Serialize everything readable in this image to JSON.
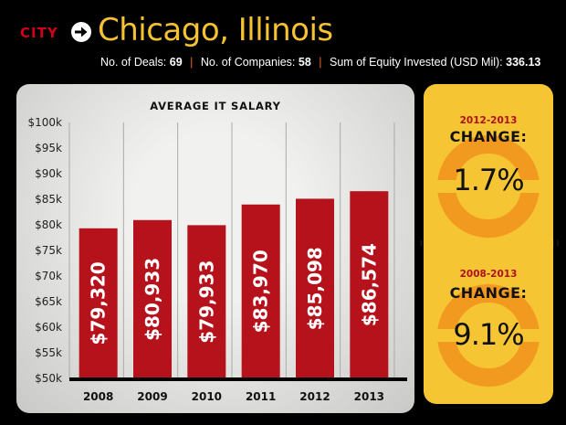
{
  "header": {
    "city_label": "CITY",
    "title": "Chicago, Illinois",
    "stats": [
      {
        "label": "No. of Deals:",
        "value": "69"
      },
      {
        "label": "No. of Companies:",
        "value": "58"
      },
      {
        "label": "Sum of Equity Invested (USD Mil):",
        "value": "336.13"
      }
    ]
  },
  "changes": [
    {
      "period": "2012-2013",
      "label": "CHANGE:",
      "value": "1.7%"
    },
    {
      "period": "2008-2013",
      "label": "CHANGE:",
      "value": "9.1%"
    }
  ],
  "colors": {
    "bar": "#b5121b",
    "accent_yellow": "#f6c533",
    "circle_orange": "#f29a1f",
    "period_red": "#b0101e"
  },
  "chart_data": {
    "type": "bar",
    "title": "AVERAGE IT SALARY",
    "categories": [
      "2008",
      "2009",
      "2010",
      "2011",
      "2012",
      "2013"
    ],
    "values": [
      79320,
      80933,
      79933,
      83970,
      85098,
      86574
    ],
    "value_labels": [
      "$79,320",
      "$80,933",
      "$79,933",
      "$83,970",
      "$85,098",
      "$86,574"
    ],
    "ylim": [
      50000,
      100000
    ],
    "yticks": [
      50000,
      55000,
      60000,
      65000,
      70000,
      75000,
      80000,
      85000,
      90000,
      95000,
      100000
    ],
    "ytick_labels": [
      "$50k",
      "$55k",
      "$60k",
      "$65k",
      "$70k",
      "$75k",
      "$80k",
      "$85k",
      "$90k",
      "$95k",
      "$100k"
    ],
    "grid": "vertical",
    "xlabel": "",
    "ylabel": ""
  }
}
